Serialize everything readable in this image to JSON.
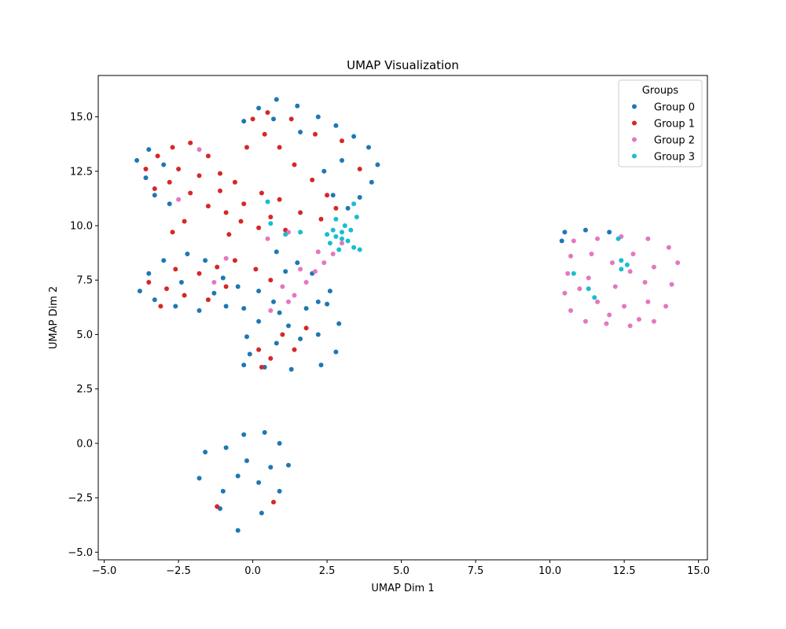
{
  "chart_data": {
    "type": "scatter",
    "title": "UMAP Visualization",
    "xlabel": "UMAP Dim 1",
    "ylabel": "UMAP Dim 2",
    "xlim": [
      -5.2,
      15.3
    ],
    "ylim": [
      -5.35,
      16.9
    ],
    "xticks": [
      -5.0,
      -2.5,
      0.0,
      2.5,
      5.0,
      7.5,
      10.0,
      12.5,
      15.0
    ],
    "xtick_labels": [
      "−5.0",
      "−2.5",
      "0.0",
      "2.5",
      "5.0",
      "7.5",
      "10.0",
      "12.5",
      "15.0"
    ],
    "yticks": [
      -5.0,
      -2.5,
      0.0,
      2.5,
      5.0,
      7.5,
      10.0,
      12.5,
      15.0
    ],
    "ytick_labels": [
      "−5.0",
      "−2.5",
      "0.0",
      "2.5",
      "5.0",
      "7.5",
      "10.0",
      "12.5",
      "15.0"
    ],
    "grid": false,
    "legend": {
      "title": "Groups",
      "placement": "top-right"
    },
    "series": [
      {
        "name": "Group 0",
        "color": "#1f77b4",
        "points": [
          [
            -0.9,
            -0.2
          ],
          [
            -0.3,
            0.4
          ],
          [
            0.4,
            0.5
          ],
          [
            0.9,
            0.0
          ],
          [
            1.2,
            -1.0
          ],
          [
            0.9,
            -2.2
          ],
          [
            0.3,
            -3.2
          ],
          [
            -0.5,
            -4.0
          ],
          [
            -1.1,
            -3.0
          ],
          [
            -1.8,
            -1.6
          ],
          [
            -1.6,
            -0.4
          ],
          [
            -0.5,
            -1.5
          ],
          [
            0.2,
            -1.8
          ],
          [
            -0.2,
            -0.8
          ],
          [
            0.6,
            -1.1
          ],
          [
            -1.0,
            -2.2
          ],
          [
            -0.3,
            3.6
          ],
          [
            0.4,
            3.5
          ],
          [
            1.3,
            3.4
          ],
          [
            2.3,
            3.6
          ],
          [
            2.8,
            4.2
          ],
          [
            2.9,
            5.5
          ],
          [
            2.5,
            6.4
          ],
          [
            1.8,
            6.2
          ],
          [
            0.9,
            6.0
          ],
          [
            0.2,
            5.6
          ],
          [
            -0.2,
            4.9
          ],
          [
            -0.1,
            4.1
          ],
          [
            0.8,
            4.6
          ],
          [
            1.6,
            4.8
          ],
          [
            2.2,
            5.0
          ],
          [
            1.2,
            5.4
          ],
          [
            -3.8,
            7.0
          ],
          [
            -3.3,
            6.6
          ],
          [
            -2.6,
            6.3
          ],
          [
            -1.8,
            6.1
          ],
          [
            -0.9,
            6.3
          ],
          [
            -0.3,
            6.2
          ],
          [
            -3.5,
            7.8
          ],
          [
            -3.0,
            8.4
          ],
          [
            -2.2,
            8.7
          ],
          [
            -1.6,
            8.4
          ],
          [
            -1.0,
            7.6
          ],
          [
            -0.5,
            7.2
          ],
          [
            0.2,
            7.0
          ],
          [
            0.7,
            6.5
          ],
          [
            -2.4,
            7.4
          ],
          [
            -1.3,
            6.9
          ],
          [
            -3.9,
            13.0
          ],
          [
            -3.6,
            12.2
          ],
          [
            -3.3,
            11.4
          ],
          [
            -2.8,
            11.0
          ],
          [
            -3.5,
            13.5
          ],
          [
            -3.0,
            12.8
          ],
          [
            -0.3,
            14.8
          ],
          [
            0.2,
            15.4
          ],
          [
            0.8,
            15.8
          ],
          [
            1.5,
            15.5
          ],
          [
            2.2,
            15.0
          ],
          [
            2.8,
            14.6
          ],
          [
            3.4,
            14.1
          ],
          [
            3.9,
            13.6
          ],
          [
            4.2,
            12.8
          ],
          [
            4.0,
            12.0
          ],
          [
            3.6,
            11.3
          ],
          [
            3.2,
            10.8
          ],
          [
            2.7,
            11.4
          ],
          [
            2.4,
            12.5
          ],
          [
            3.0,
            13.0
          ],
          [
            1.6,
            14.3
          ],
          [
            0.7,
            14.9
          ],
          [
            10.5,
            9.7
          ],
          [
            11.2,
            9.8
          ],
          [
            12.0,
            9.7
          ],
          [
            10.4,
            9.3
          ],
          [
            0.8,
            8.8
          ],
          [
            1.5,
            8.3
          ],
          [
            2.0,
            7.8
          ],
          [
            2.6,
            7.0
          ],
          [
            2.2,
            6.5
          ],
          [
            1.1,
            7.9
          ]
        ]
      },
      {
        "name": "Group 1",
        "color": "#d62728",
        "points": [
          [
            -3.6,
            12.6
          ],
          [
            -3.2,
            13.2
          ],
          [
            -2.7,
            13.6
          ],
          [
            -2.1,
            13.8
          ],
          [
            -1.5,
            13.2
          ],
          [
            -1.1,
            12.4
          ],
          [
            -0.6,
            12.0
          ],
          [
            -0.2,
            13.6
          ],
          [
            0.4,
            14.2
          ],
          [
            0.9,
            13.6
          ],
          [
            1.4,
            12.8
          ],
          [
            2.0,
            12.1
          ],
          [
            2.5,
            11.4
          ],
          [
            2.8,
            10.8
          ],
          [
            2.3,
            10.3
          ],
          [
            1.6,
            10.6
          ],
          [
            0.9,
            11.2
          ],
          [
            0.3,
            11.5
          ],
          [
            -0.3,
            11.0
          ],
          [
            -0.9,
            10.6
          ],
          [
            -1.5,
            10.9
          ],
          [
            -2.1,
            11.5
          ],
          [
            -2.8,
            12.0
          ],
          [
            -3.3,
            11.7
          ],
          [
            -2.5,
            12.6
          ],
          [
            -1.8,
            12.3
          ],
          [
            -1.1,
            11.6
          ],
          [
            -0.4,
            10.2
          ],
          [
            0.2,
            9.9
          ],
          [
            0.6,
            10.4
          ],
          [
            1.1,
            9.8
          ],
          [
            -0.8,
            9.6
          ],
          [
            -2.3,
            10.2
          ],
          [
            -2.7,
            9.7
          ],
          [
            0.5,
            15.2
          ],
          [
            1.3,
            14.9
          ],
          [
            2.1,
            14.2
          ],
          [
            3.0,
            13.9
          ],
          [
            3.6,
            12.6
          ],
          [
            0.0,
            14.9
          ],
          [
            -3.5,
            7.4
          ],
          [
            -2.9,
            7.1
          ],
          [
            -2.3,
            6.8
          ],
          [
            -1.8,
            7.8
          ],
          [
            -1.2,
            8.1
          ],
          [
            -0.6,
            8.4
          ],
          [
            0.1,
            8.0
          ],
          [
            0.6,
            7.5
          ],
          [
            -2.6,
            8.0
          ],
          [
            -1.5,
            6.6
          ],
          [
            -3.1,
            6.3
          ],
          [
            -0.9,
            7.2
          ],
          [
            0.2,
            4.3
          ],
          [
            0.6,
            3.9
          ],
          [
            1.4,
            4.3
          ],
          [
            1.8,
            5.3
          ],
          [
            1.0,
            5.0
          ],
          [
            0.3,
            3.5
          ],
          [
            -1.2,
            -2.9
          ],
          [
            0.7,
            -2.7
          ]
        ]
      },
      {
        "name": "Group 2",
        "color": "#e377c2",
        "points": [
          [
            10.8,
            9.3
          ],
          [
            11.6,
            9.4
          ],
          [
            12.4,
            9.5
          ],
          [
            13.3,
            9.4
          ],
          [
            14.0,
            9.0
          ],
          [
            14.3,
            8.3
          ],
          [
            14.1,
            7.3
          ],
          [
            13.9,
            6.3
          ],
          [
            13.5,
            5.6
          ],
          [
            12.7,
            5.4
          ],
          [
            11.9,
            5.5
          ],
          [
            11.2,
            5.6
          ],
          [
            10.7,
            6.1
          ],
          [
            10.5,
            6.9
          ],
          [
            10.6,
            7.8
          ],
          [
            10.7,
            8.6
          ],
          [
            11.4,
            8.7
          ],
          [
            12.1,
            8.3
          ],
          [
            12.8,
            8.7
          ],
          [
            13.5,
            8.1
          ],
          [
            11.3,
            7.6
          ],
          [
            12.2,
            7.2
          ],
          [
            13.2,
            7.4
          ],
          [
            11.6,
            6.5
          ],
          [
            12.5,
            6.3
          ],
          [
            13.3,
            6.5
          ],
          [
            12.0,
            5.9
          ],
          [
            13.0,
            5.7
          ],
          [
            11.0,
            7.1
          ],
          [
            12.7,
            7.9
          ],
          [
            1.8,
            7.4
          ],
          [
            2.1,
            7.9
          ],
          [
            2.4,
            8.3
          ],
          [
            2.7,
            8.7
          ],
          [
            3.0,
            9.2
          ],
          [
            1.4,
            6.8
          ],
          [
            1.0,
            7.2
          ],
          [
            1.6,
            8.0
          ],
          [
            2.2,
            8.8
          ],
          [
            0.6,
            6.1
          ],
          [
            1.2,
            6.5
          ],
          [
            -1.3,
            7.4
          ],
          [
            -1.8,
            13.5
          ],
          [
            -2.5,
            11.2
          ],
          [
            -0.9,
            8.5
          ],
          [
            0.5,
            9.4
          ],
          [
            1.2,
            9.7
          ]
        ]
      },
      {
        "name": "Group 3",
        "color": "#17becf",
        "points": [
          [
            2.6,
            9.2
          ],
          [
            2.8,
            9.5
          ],
          [
            3.0,
            9.7
          ],
          [
            3.2,
            9.3
          ],
          [
            3.4,
            9.0
          ],
          [
            2.9,
            8.9
          ],
          [
            3.1,
            10.0
          ],
          [
            2.7,
            9.8
          ],
          [
            3.5,
            10.4
          ],
          [
            3.3,
            9.8
          ],
          [
            2.5,
            9.6
          ],
          [
            3.6,
            8.9
          ],
          [
            3.0,
            9.4
          ],
          [
            2.8,
            10.3
          ],
          [
            0.6,
            10.1
          ],
          [
            1.6,
            9.7
          ],
          [
            1.1,
            9.6
          ],
          [
            0.5,
            11.1
          ],
          [
            3.4,
            11.0
          ],
          [
            10.8,
            7.8
          ],
          [
            11.3,
            7.1
          ],
          [
            11.5,
            6.7
          ],
          [
            12.3,
            9.4
          ],
          [
            12.4,
            8.0
          ],
          [
            12.6,
            8.2
          ],
          [
            12.4,
            8.4
          ]
        ]
      }
    ]
  }
}
